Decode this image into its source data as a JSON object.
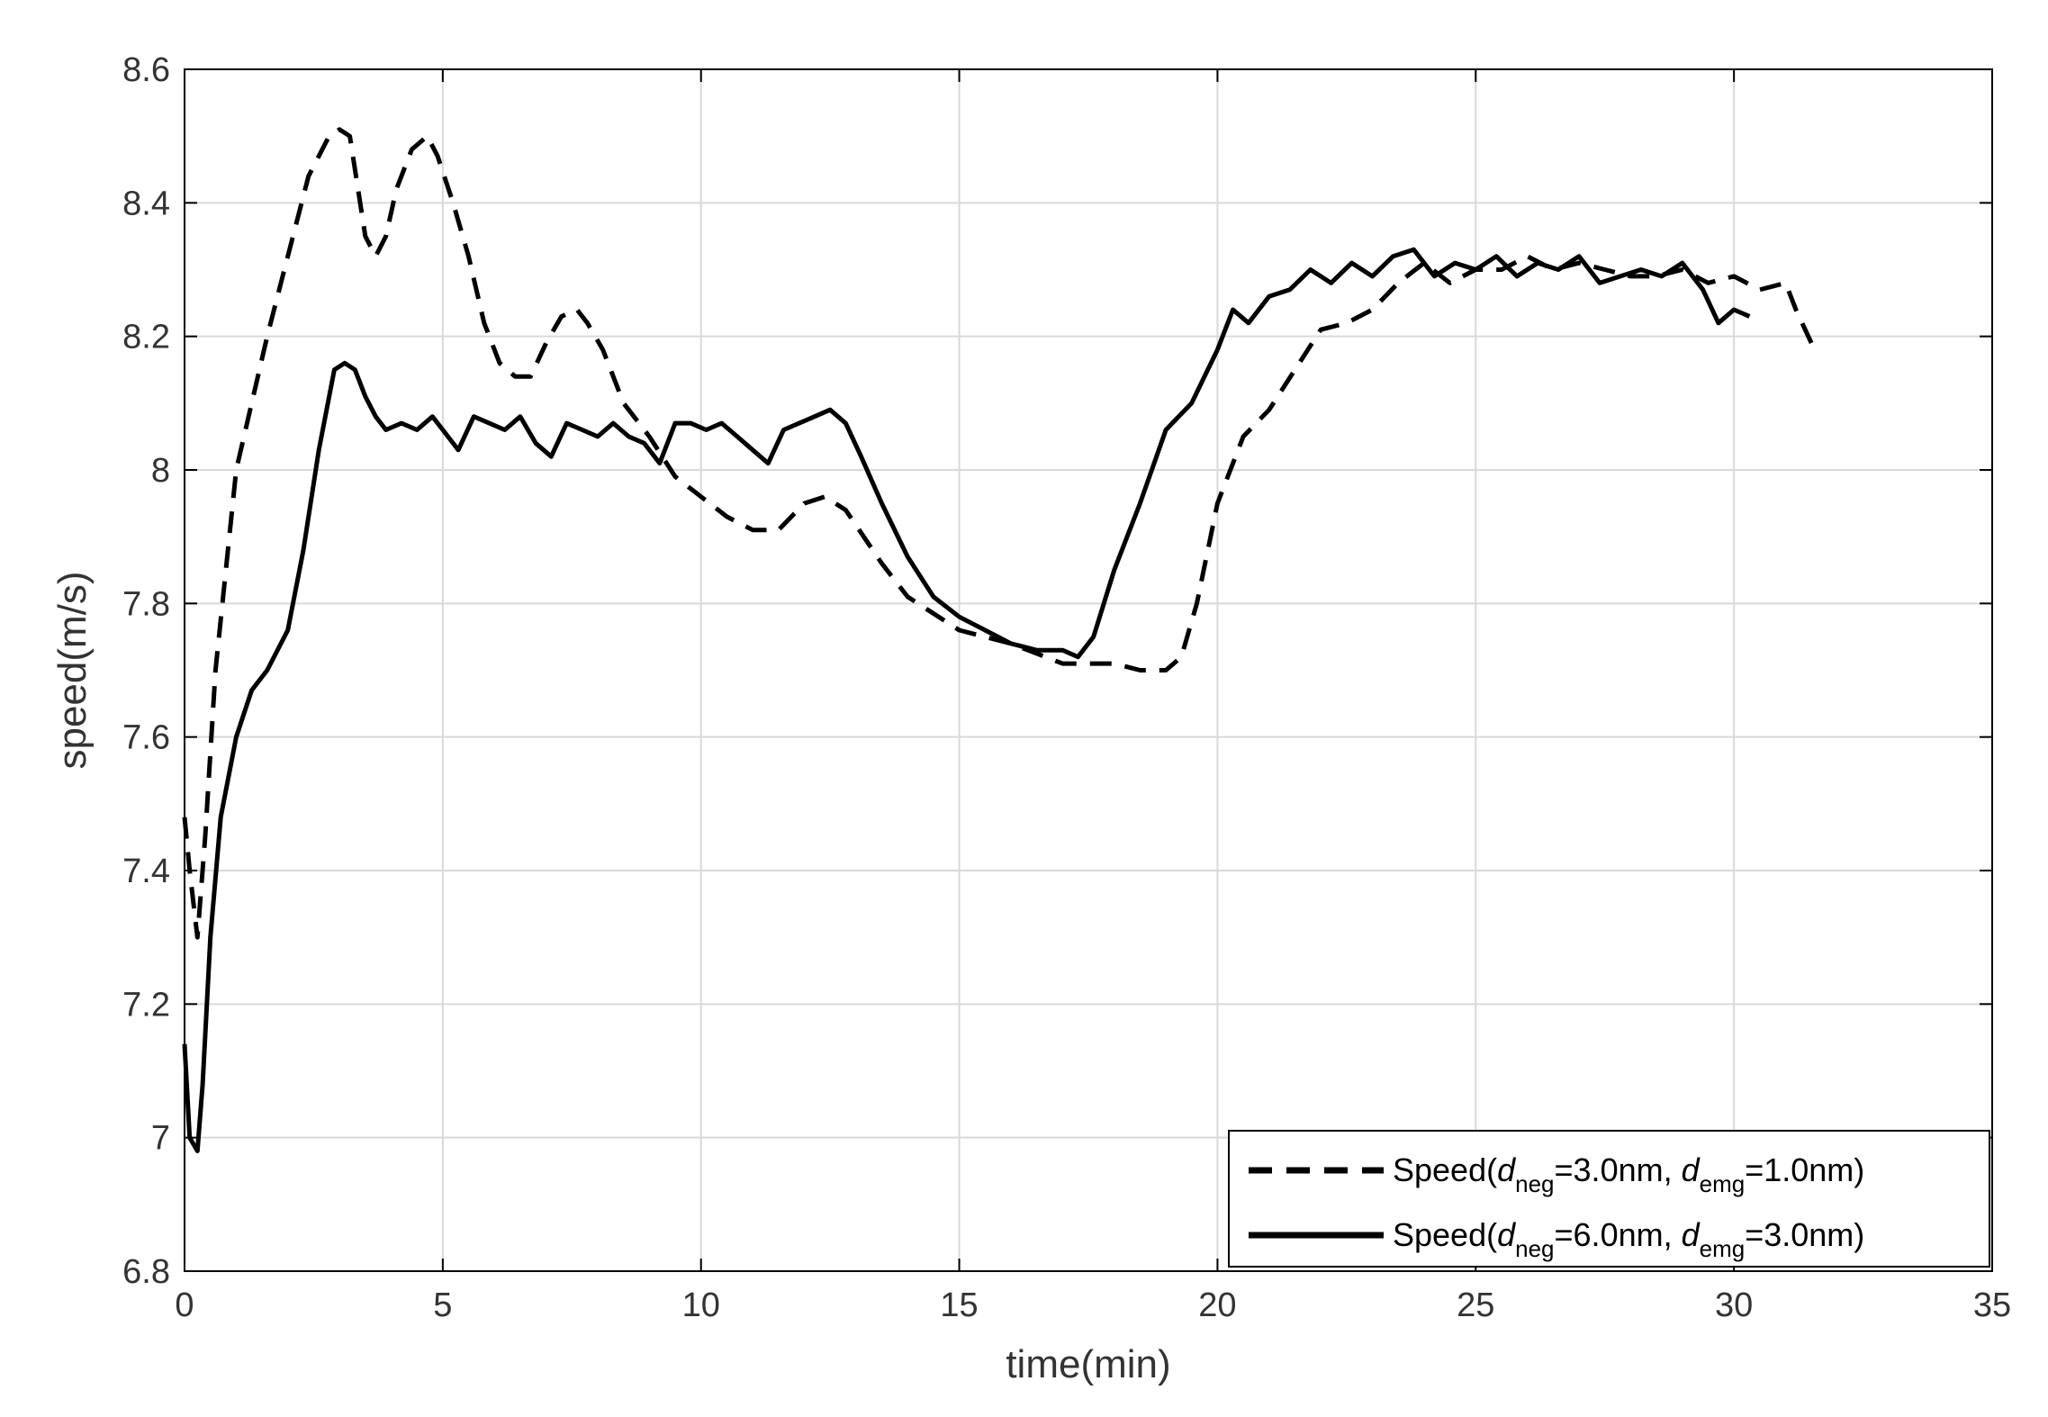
{
  "chart_data": {
    "type": "line",
    "title": "",
    "xlabel": "time(min)",
    "ylabel": "speed(m/s)",
    "xlim": [
      0,
      35
    ],
    "ylim": [
      6.8,
      8.6
    ],
    "x_ticks": [
      0,
      5,
      10,
      15,
      20,
      25,
      30,
      35
    ],
    "y_ticks": [
      6.8,
      7,
      7.2,
      7.4,
      7.6,
      7.8,
      8,
      8.2,
      8.4,
      8.6
    ],
    "x_tick_labels": [
      "0",
      "5",
      "10",
      "15",
      "20",
      "25",
      "30",
      "35"
    ],
    "y_tick_labels": [
      "6.8",
      "7",
      "7.2",
      "7.4",
      "7.6",
      "7.8",
      "8",
      "8.2",
      "8.4",
      "8.6"
    ],
    "grid": true,
    "legend": {
      "position": "bottom-right"
    },
    "colors": {
      "axis": "#000000",
      "grid": "#d9d9d9",
      "series": "#000000",
      "tick_label": "#333333"
    },
    "series": [
      {
        "legend": {
          "prefix": "Speed(",
          "sym1": "d",
          "sub1": "neg",
          "mid": "=3.0nm, ",
          "sym2": "d",
          "sub2": "emg",
          "suffix": "=1.0nm)"
        },
        "style": "dashed",
        "x": [
          0,
          0.1,
          0.25,
          0.4,
          0.6,
          0.8,
          1.0,
          1.3,
          1.6,
          2.0,
          2.4,
          2.8,
          3.0,
          3.2,
          3.5,
          3.7,
          3.9,
          4.1,
          4.4,
          4.7,
          4.9,
          5.2,
          5.5,
          5.8,
          6.1,
          6.4,
          6.7,
          7.0,
          7.3,
          7.6,
          7.8,
          8.1,
          8.5,
          9.0,
          9.5,
          10.0,
          10.5,
          11.0,
          11.5,
          12.0,
          12.4,
          12.8,
          13.5,
          14.0,
          15.0,
          16.0,
          17.0,
          17.5,
          18.0,
          18.5,
          19.0,
          19.3,
          19.6,
          20.0,
          20.5,
          21.0,
          21.5,
          22.0,
          22.5,
          23.0,
          23.5,
          24.0,
          24.5,
          25.0,
          25.5,
          26.0,
          26.5,
          27.0,
          27.5,
          28.0,
          28.5,
          29.0,
          29.5,
          30.0,
          30.5,
          31.0,
          31.2,
          31.5
        ],
        "y": [
          7.48,
          7.4,
          7.3,
          7.45,
          7.7,
          7.85,
          8.0,
          8.1,
          8.2,
          8.32,
          8.44,
          8.5,
          8.51,
          8.5,
          8.35,
          8.32,
          8.35,
          8.42,
          8.48,
          8.5,
          8.47,
          8.4,
          8.32,
          8.22,
          8.16,
          8.14,
          8.14,
          8.19,
          8.23,
          8.24,
          8.22,
          8.18,
          8.1,
          8.05,
          7.99,
          7.96,
          7.93,
          7.91,
          7.91,
          7.95,
          7.96,
          7.94,
          7.86,
          7.81,
          7.76,
          7.74,
          7.71,
          7.71,
          7.71,
          7.7,
          7.7,
          7.72,
          7.8,
          7.95,
          8.05,
          8.09,
          8.15,
          8.21,
          8.22,
          8.24,
          8.28,
          8.31,
          8.28,
          8.3,
          8.3,
          8.32,
          8.3,
          8.31,
          8.3,
          8.29,
          8.29,
          8.3,
          8.28,
          8.29,
          8.27,
          8.28,
          8.24,
          8.19
        ]
      },
      {
        "legend": {
          "prefix": "Speed(",
          "sym1": "d",
          "sub1": "neg",
          "mid": "=6.0nm, ",
          "sym2": "d",
          "sub2": "emg",
          "suffix": "=3.0nm)"
        },
        "style": "solid",
        "x": [
          0,
          0.1,
          0.25,
          0.35,
          0.5,
          0.7,
          1.0,
          1.3,
          1.6,
          2.0,
          2.3,
          2.6,
          2.9,
          3.1,
          3.3,
          3.5,
          3.7,
          3.9,
          4.2,
          4.5,
          4.8,
          5.0,
          5.3,
          5.6,
          5.9,
          6.2,
          6.5,
          6.8,
          7.1,
          7.4,
          7.7,
          8.0,
          8.3,
          8.6,
          8.9,
          9.2,
          9.5,
          9.8,
          10.1,
          10.4,
          10.7,
          11.0,
          11.3,
          11.6,
          11.9,
          12.2,
          12.5,
          12.8,
          13.1,
          13.5,
          14.0,
          14.5,
          15.0,
          15.5,
          16.0,
          16.5,
          17.0,
          17.3,
          17.6,
          18.0,
          18.5,
          19.0,
          19.5,
          20.0,
          20.3,
          20.6,
          21.0,
          21.4,
          21.8,
          22.2,
          22.6,
          23.0,
          23.4,
          23.8,
          24.2,
          24.6,
          25.0,
          25.4,
          25.8,
          26.2,
          26.6,
          27.0,
          27.4,
          27.8,
          28.2,
          28.6,
          29.0,
          29.4,
          29.7,
          30.0,
          30.3
        ],
        "y": [
          7.14,
          7.0,
          6.98,
          7.08,
          7.3,
          7.48,
          7.6,
          7.67,
          7.7,
          7.76,
          7.88,
          8.03,
          8.15,
          8.16,
          8.15,
          8.11,
          8.08,
          8.06,
          8.07,
          8.06,
          8.08,
          8.06,
          8.03,
          8.08,
          8.07,
          8.06,
          8.08,
          8.04,
          8.02,
          8.07,
          8.06,
          8.05,
          8.07,
          8.05,
          8.04,
          8.01,
          8.07,
          8.07,
          8.06,
          8.07,
          8.05,
          8.03,
          8.01,
          8.06,
          8.07,
          8.08,
          8.09,
          8.07,
          8.02,
          7.95,
          7.87,
          7.81,
          7.78,
          7.76,
          7.74,
          7.73,
          7.73,
          7.72,
          7.75,
          7.85,
          7.95,
          8.06,
          8.1,
          8.18,
          8.24,
          8.22,
          8.26,
          8.27,
          8.3,
          8.28,
          8.31,
          8.29,
          8.32,
          8.33,
          8.29,
          8.31,
          8.3,
          8.32,
          8.29,
          8.31,
          8.3,
          8.32,
          8.28,
          8.29,
          8.3,
          8.29,
          8.31,
          8.27,
          8.22,
          8.24,
          8.23
        ]
      }
    ]
  }
}
